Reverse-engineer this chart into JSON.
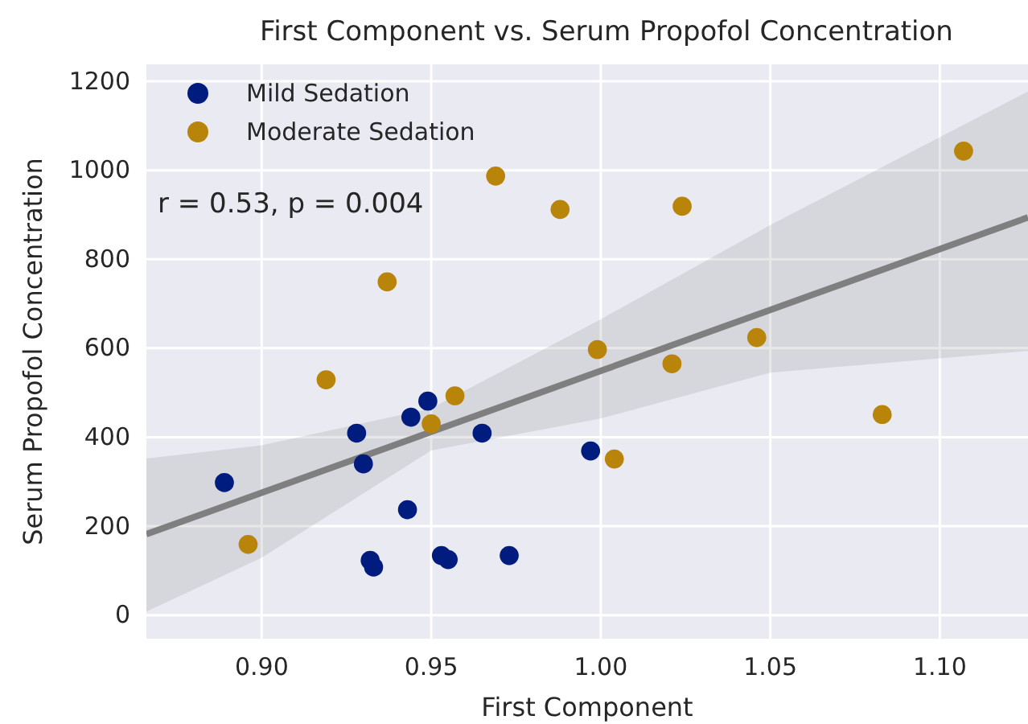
{
  "chart_data": {
    "type": "scatter",
    "title": "First Component vs. Serum Propofol Concentration",
    "xlabel": "First Component",
    "ylabel": "Serum Propofol Concentration",
    "annotations": [
      "r = 0.53, p = 0.004"
    ],
    "series": [
      {
        "name": "Mild Sedation",
        "color": "#001c7f",
        "marker": "circle",
        "x": [
          0.889,
          0.928,
          0.93,
          0.932,
          0.933,
          0.943,
          0.944,
          0.949,
          0.965,
          0.953,
          0.955,
          0.973,
          0.997
        ],
        "values": [
          298,
          409,
          340,
          123,
          108,
          237,
          445,
          481,
          409,
          134,
          125,
          134,
          369
        ]
      },
      {
        "name": "Moderate Sedation",
        "color": "#b8850a",
        "marker": "circle",
        "x": [
          0.896,
          0.919,
          0.937,
          0.95,
          0.957,
          0.969,
          0.988,
          0.999,
          1.004,
          1.021,
          1.024,
          1.046,
          1.083,
          1.107
        ],
        "values": [
          159,
          529,
          749,
          430,
          493,
          987,
          912,
          597,
          351,
          565,
          919,
          624,
          451,
          1043
        ]
      },
      {
        "type": "line",
        "color": "#7f7f7f",
        "marker": "none",
        "x": [
          0.866,
          0.9,
          0.95,
          1.0,
          1.05,
          1.126
        ],
        "values": [
          182,
          275,
          412,
          549,
          686,
          894
        ],
        "lower": [
          8,
          129,
          370,
          442,
          545,
          594
        ],
        "upper": [
          352,
          382,
          465,
          665,
          877,
          1177
        ]
      }
    ],
    "xlim": [
      0.866,
      1.126
    ],
    "xticks": [
      {
        "value": 0.9,
        "label": "0.90"
      },
      {
        "value": 0.95,
        "label": "0.95"
      },
      {
        "value": 1.0,
        "label": "1.00"
      },
      {
        "value": 1.05,
        "label": "1.05"
      },
      {
        "value": 1.1,
        "label": "1.10"
      }
    ],
    "ylim": [
      -53,
      1238
    ],
    "yticks": [
      0,
      200,
      400,
      600,
      800,
      1000,
      1200
    ],
    "grid": true,
    "legend": "top left"
  }
}
